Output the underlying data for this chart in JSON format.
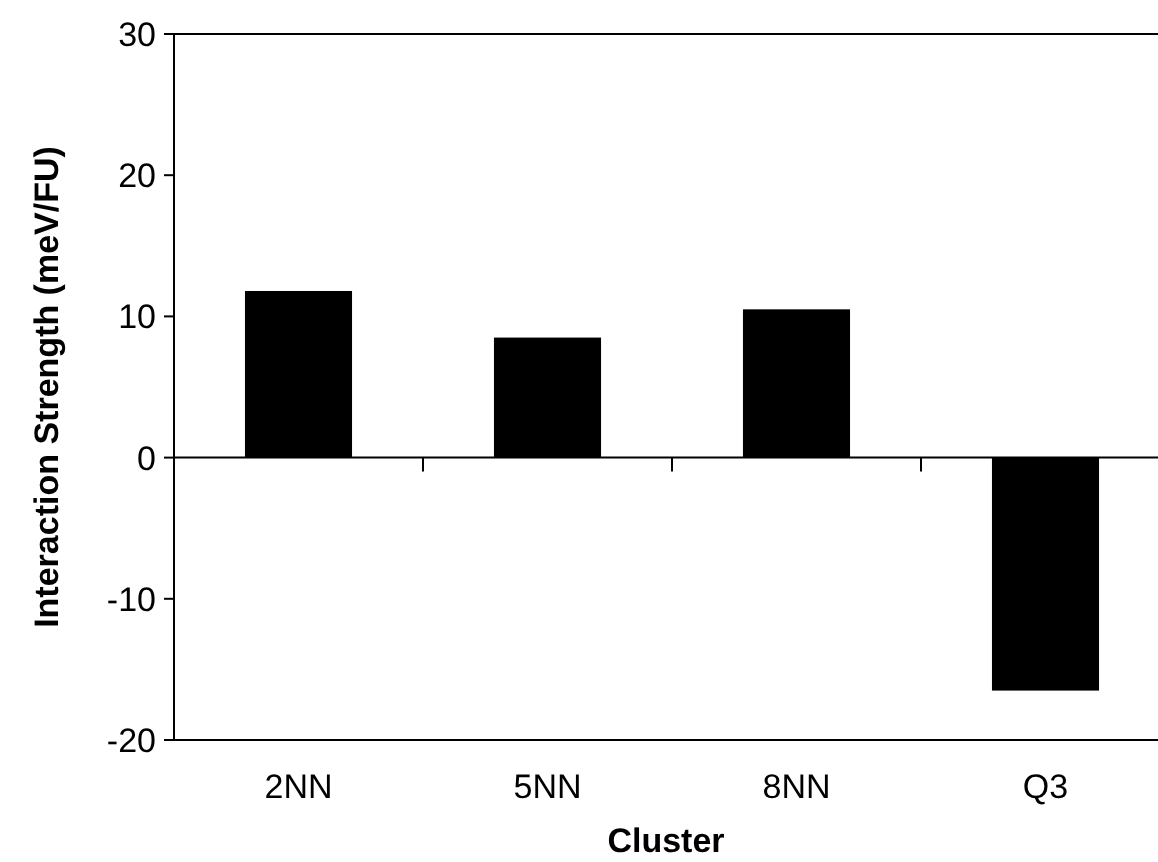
{
  "chart_data": {
    "type": "bar",
    "xlabel": "Cluster",
    "ylabel": "Interaction Strength (meV/FU)",
    "categories": [
      "2NN",
      "5NN",
      "8NN",
      "Q3"
    ],
    "values": [
      11.8,
      8.5,
      10.5,
      -16.5
    ],
    "color": "#000000",
    "ylim": [
      -20,
      30
    ],
    "yticks": [
      -20,
      -10,
      0,
      10,
      20,
      30
    ]
  }
}
